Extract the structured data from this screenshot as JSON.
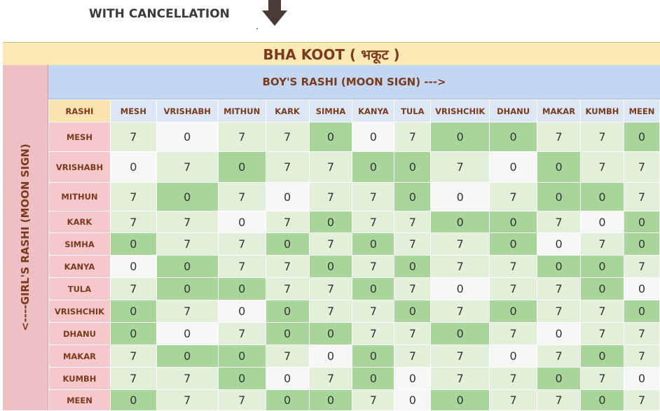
{
  "caption": "WITH CANCELLATION",
  "title": "BHA KOOT ( भकूट )",
  "boy_header": "BOY'S RASHI (MOON SIGN) --->",
  "girl_header": "<----GIRL'S RASHI (MOON SIGN)",
  "corner_label": "RASHI",
  "columns": [
    "MESH",
    "VRISHABH",
    "MITHUN",
    "KARK",
    "SIMHA",
    "KANYA",
    "TULA",
    "VRISHCHIK",
    "DHANU",
    "MAKAR",
    "KUMBH",
    "MEEN"
  ],
  "rows": [
    {
      "label": "MESH",
      "values": [
        "7",
        "0",
        "7",
        "7",
        "0",
        "0",
        "7",
        "0",
        "0",
        "7",
        "7",
        "0"
      ]
    },
    {
      "label": "VRISHABH",
      "values": [
        "0",
        "7",
        "0",
        "7",
        "7",
        "0",
        "0",
        "7",
        "0",
        "0",
        "7",
        "7"
      ]
    },
    {
      "label": "MITHUN",
      "values": [
        "7",
        "0",
        "7",
        "0",
        "7",
        "7",
        "0",
        "0",
        "7",
        "0",
        "0",
        "7"
      ]
    },
    {
      "label": "KARK",
      "values": [
        "7",
        "7",
        "0",
        "7",
        "0",
        "7",
        "7",
        "0",
        "0",
        "7",
        "0",
        "0"
      ]
    },
    {
      "label": "SIMHA",
      "values": [
        "0",
        "7",
        "7",
        "0",
        "7",
        "0",
        "7",
        "7",
        "0",
        "0",
        "7",
        "0"
      ]
    },
    {
      "label": "KANYA",
      "values": [
        "0",
        "0",
        "7",
        "7",
        "0",
        "7",
        "0",
        "7",
        "7",
        "0",
        "0",
        "7"
      ]
    },
    {
      "label": "TULA",
      "values": [
        "7",
        "0",
        "0",
        "7",
        "7",
        "0",
        "7",
        "0",
        "7",
        "7",
        "0",
        "0"
      ]
    },
    {
      "label": "VRISHCHIK",
      "values": [
        "0",
        "7",
        "0",
        "0",
        "7",
        "7",
        "0",
        "7",
        "0",
        "7",
        "7",
        "0"
      ]
    },
    {
      "label": "DHANU",
      "values": [
        "0",
        "0",
        "7",
        "0",
        "0",
        "7",
        "7",
        "0",
        "7",
        "0",
        "7",
        "7"
      ]
    },
    {
      "label": "MAKAR",
      "values": [
        "7",
        "0",
        "0",
        "7",
        "0",
        "0",
        "7",
        "7",
        "0",
        "7",
        "0",
        "7"
      ]
    },
    {
      "label": "KUMBH",
      "values": [
        "7",
        "7",
        "0",
        "0",
        "7",
        "0",
        "0",
        "7",
        "7",
        "0",
        "7",
        "0"
      ]
    },
    {
      "label": "MEEN",
      "values": [
        "0",
        "7",
        "7",
        "0",
        "0",
        "7",
        "0",
        "0",
        "7",
        "7",
        "0",
        "7"
      ]
    }
  ],
  "cell_shading": [
    [
      "7",
      "0w",
      "7",
      "7",
      "0",
      "0w",
      "7",
      "0",
      "0",
      "7",
      "7",
      "0"
    ],
    [
      "0w",
      "7",
      "0",
      "7",
      "7",
      "0",
      "0",
      "7",
      "0w",
      "0",
      "7",
      "7"
    ],
    [
      "7",
      "0",
      "7",
      "0w",
      "7",
      "7",
      "0",
      "0w",
      "7",
      "0",
      "0",
      "7"
    ],
    [
      "7",
      "7",
      "0w",
      "7",
      "0",
      "7",
      "7",
      "0",
      "0",
      "7",
      "0w",
      "0"
    ],
    [
      "0",
      "7",
      "7",
      "0",
      "7",
      "0",
      "7",
      "7",
      "0",
      "0w",
      "7",
      "0"
    ],
    [
      "0w",
      "0",
      "7",
      "7",
      "0",
      "7",
      "0",
      "7",
      "7",
      "0",
      "0",
      "7"
    ],
    [
      "7",
      "0",
      "0",
      "7",
      "7",
      "0",
      "7",
      "0w",
      "7",
      "7",
      "0",
      "0w"
    ],
    [
      "0",
      "7",
      "0w",
      "0",
      "7",
      "7",
      "0",
      "7",
      "0",
      "7",
      "7",
      "0"
    ],
    [
      "0",
      "0w",
      "7",
      "0",
      "0",
      "7",
      "7",
      "0",
      "7",
      "0w",
      "7",
      "7"
    ],
    [
      "7",
      "0",
      "0",
      "7",
      "0w",
      "0",
      "7",
      "7",
      "0w",
      "7",
      "0",
      "7"
    ],
    [
      "7",
      "7",
      "0",
      "0w",
      "7",
      "0",
      "0w",
      "7",
      "7",
      "0",
      "7",
      "0w"
    ],
    [
      "0",
      "7",
      "7",
      "0",
      "0",
      "7",
      "0w",
      "0",
      "7",
      "7",
      "0",
      "7"
    ]
  ],
  "colors": {
    "title_bg": "#fbe9b5",
    "boy_header_bg": "#c3d7f2",
    "girl_header_bg": "#eec0c3",
    "match_7_bg": "#e2f0d9",
    "match_0_bg": "#a8d69a",
    "neutral_bg": "#f7f7f7",
    "label_text": "#7b3a1c"
  },
  "icons": [
    "down-arrow-icon"
  ]
}
